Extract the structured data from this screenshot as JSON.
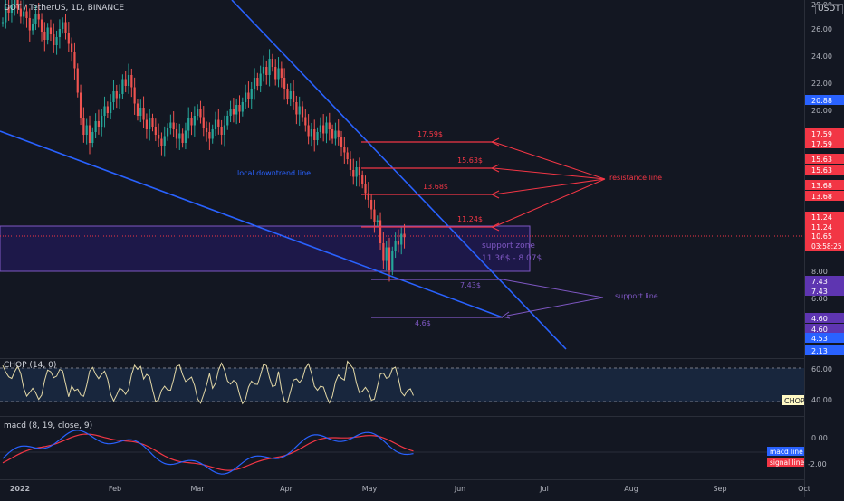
{
  "header": {
    "symbol_title": "DOT / TetherUS, 1D, BINANCE",
    "currency": "USDT"
  },
  "colors": {
    "background": "#131722",
    "up": "#26a69a",
    "down": "#ef5350",
    "trend": "#2962ff",
    "resistance": "#f23645",
    "support": "#7e57c2",
    "zone_fill": "#311b92",
    "chop_line": "#e3d8a6",
    "macd_line": "#2962ff",
    "signal_line": "#f23645"
  },
  "x_axis": {
    "labels": [
      "2022",
      "Feb",
      "Mar",
      "Apr",
      "May",
      "Jun",
      "Jul",
      "Aug",
      "Sep",
      "Oct"
    ]
  },
  "price_axis": {
    "ticks": [
      "26.00",
      "24.00",
      "22.00",
      "20.00",
      "8.00",
      "6.00"
    ],
    "upper_partial": "28.00"
  },
  "price_tags": [
    {
      "key": "p2088",
      "text": "20.88",
      "kind": "blue"
    },
    {
      "key": "p1759a",
      "text": "17.59",
      "kind": "red"
    },
    {
      "key": "p1759b",
      "text": "17.59",
      "kind": "red"
    },
    {
      "key": "p1563a",
      "text": "15.63",
      "kind": "red"
    },
    {
      "key": "p1563b",
      "text": "15.63",
      "kind": "red"
    },
    {
      "key": "p1368a",
      "text": "13.68",
      "kind": "red"
    },
    {
      "key": "p1368b",
      "text": "13.68",
      "kind": "red"
    },
    {
      "key": "p1124a",
      "text": "11.24",
      "kind": "red"
    },
    {
      "key": "p1124b",
      "text": "11.24",
      "kind": "red"
    },
    {
      "key": "p1065",
      "text": "10.65",
      "kind": "current"
    },
    {
      "key": "countdown",
      "text": "03:58:25",
      "kind": "current"
    },
    {
      "key": "p743a",
      "text": "7.43",
      "kind": "purple"
    },
    {
      "key": "p743b",
      "text": "7.43",
      "kind": "purple"
    },
    {
      "key": "p460a",
      "text": "4.60",
      "kind": "purple"
    },
    {
      "key": "p460b",
      "text": "4.60",
      "kind": "purple"
    },
    {
      "key": "p453",
      "text": "4.53",
      "kind": "blue"
    },
    {
      "key": "p213",
      "text": "2.13",
      "kind": "blue"
    }
  ],
  "annotations": {
    "local_downtrend": "local downtrend line",
    "resistance_line": "resistance line",
    "support_line": "support line",
    "support_zone": "support zone",
    "support_zone_range": "11.36$ - 8.07$",
    "r1759": "17.59$",
    "r1563": "15.63$",
    "r1368": "13.68$",
    "r1124": "11.24$",
    "s743": "7.43$",
    "s46": "4.6$"
  },
  "chop": {
    "title": "CHOP (14, 0)",
    "ticks": [
      "60.00",
      "40.00"
    ],
    "tag": "CHOP"
  },
  "macd": {
    "title": "macd (8, 19, close, 9)",
    "ticks": [
      "0.00",
      "-2.00"
    ],
    "legend_macd": "macd line",
    "legend_signal": "signal line"
  },
  "chart_data": {
    "type": "candlestick",
    "symbol": "DOT/USDT",
    "interval": "1D",
    "exchange": "BINANCE",
    "x_range": [
      "2022-01-01",
      "2022-10-01"
    ],
    "y_axis_ticks": [
      26,
      24,
      22,
      20,
      8,
      6
    ],
    "last_price": 10.65,
    "close_approx": [
      26.5,
      27.6,
      27.2,
      27.8,
      28.4,
      27.5,
      26.9,
      27.3,
      26.8,
      25.9,
      26.4,
      27.1,
      26.7,
      25.8,
      25.2,
      26.1,
      25.6,
      24.8,
      25.4,
      26.0,
      26.5,
      25.7,
      24.9,
      24.3,
      23.1,
      21.3,
      19.4,
      18.2,
      18.9,
      17.6,
      18.4,
      19.2,
      18.8,
      19.6,
      20.3,
      19.8,
      20.6,
      21.4,
      20.9,
      21.2,
      22.3,
      21.8,
      22.6,
      21.7,
      20.5,
      19.6,
      20.2,
      19.3,
      18.6,
      19.4,
      18.8,
      18.2,
      17.9,
      17.4,
      18.1,
      18.7,
      19.1,
      18.6,
      17.9,
      18.3,
      17.6,
      18.5,
      19.4,
      18.9,
      19.6,
      20.1,
      19.5,
      18.7,
      18.4,
      17.9,
      18.6,
      19.3,
      18.8,
      18.2,
      18.9,
      19.6,
      20.1,
      19.7,
      20.4,
      19.9,
      20.6,
      21.3,
      20.8,
      21.6,
      22.4,
      21.8,
      22.7,
      23.2,
      22.6,
      23.8,
      23.2,
      22.3,
      23.1,
      22.4,
      21.6,
      20.8,
      21.4,
      20.6,
      19.7,
      20.3,
      19.5,
      18.9,
      18.1,
      18.6,
      17.8,
      18.4,
      18.9,
      18.3,
      19.1,
      18.6,
      17.9,
      18.5,
      18.0,
      17.3,
      16.9,
      16.4,
      15.6,
      15.1,
      15.8,
      15.2,
      14.6,
      13.9,
      13.4,
      12.7,
      11.8,
      11.9,
      10.2,
      8.9,
      9.9,
      8.2,
      9.6,
      10.4,
      10.1,
      10.9,
      10.65
    ],
    "downtrend_lines": [
      {
        "label": "local downtrend line",
        "from": [
          "2022-01-01",
          19.9
        ],
        "to": [
          "2022-05-18",
          7.0
        ]
      },
      {
        "label": "",
        "from": [
          "2022-01-27",
          29.0
        ],
        "to": [
          "2022-07-02",
          2.1
        ]
      }
    ],
    "resistance_levels": [
      17.59,
      15.63,
      13.68,
      11.24
    ],
    "support_levels": [
      7.43,
      4.6
    ],
    "support_zone": [
      8.07,
      11.36
    ],
    "indicators": {
      "chop": {
        "params": "14, 0",
        "levels": [
          61.8,
          38.2
        ]
      },
      "macd": {
        "params": "8, 19, close, 9"
      }
    }
  }
}
